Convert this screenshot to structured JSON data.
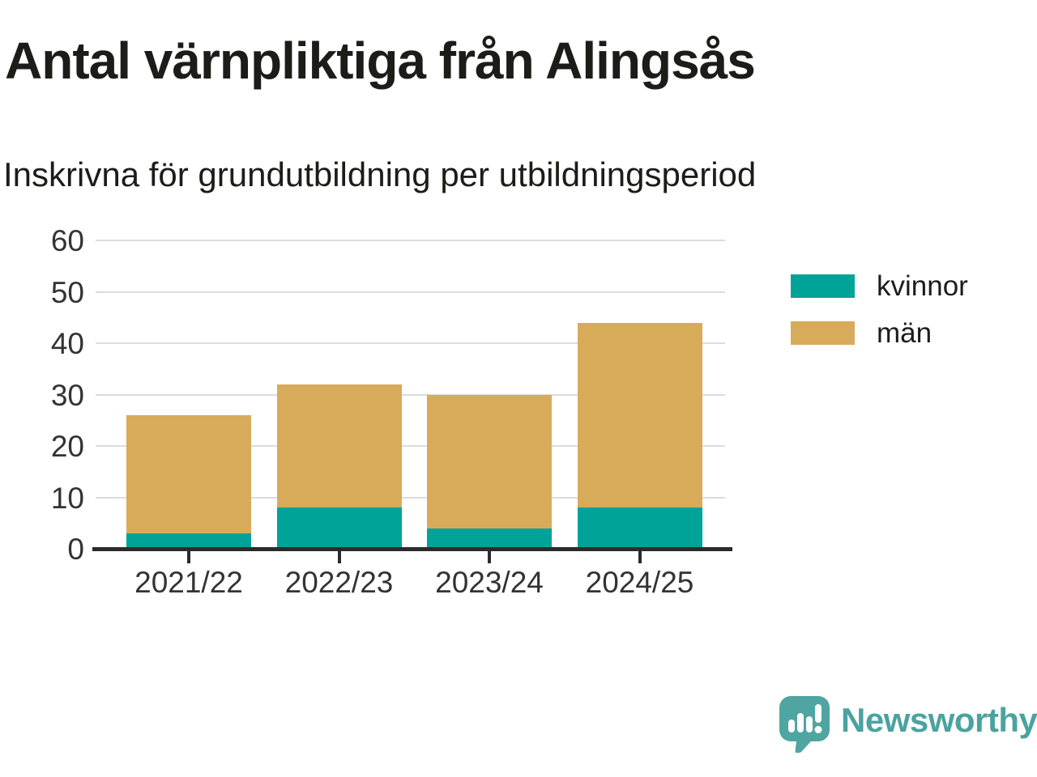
{
  "chart_data": {
    "type": "bar",
    "stacked": true,
    "title": "Antal värnpliktiga från Alingsås",
    "subtitle": "Inskrivna för grundutbildning per utbildningsperiod",
    "categories": [
      "2021/22",
      "2022/23",
      "2023/24",
      "2024/25"
    ],
    "series": [
      {
        "name": "kvinnor",
        "color": "#00a398",
        "values": [
          3,
          8,
          4,
          8
        ]
      },
      {
        "name": "män",
        "color": "#d8ab5b",
        "values": [
          23,
          24,
          26,
          36
        ]
      }
    ],
    "totals": [
      26,
      32,
      30,
      44
    ],
    "xlabel": "",
    "ylabel": "",
    "ylim": [
      0,
      60
    ],
    "yticks": [
      0,
      10,
      20,
      30,
      40,
      50,
      60
    ],
    "grid": true,
    "legend_position": "right"
  },
  "colors": {
    "axis": "#2b2b2b",
    "grid": "#dcdcdc",
    "tick_label": "#333333",
    "text": "#1c1c18",
    "brand_teal": "#4aa3a0"
  },
  "logo": {
    "text": "Newsworthy"
  }
}
